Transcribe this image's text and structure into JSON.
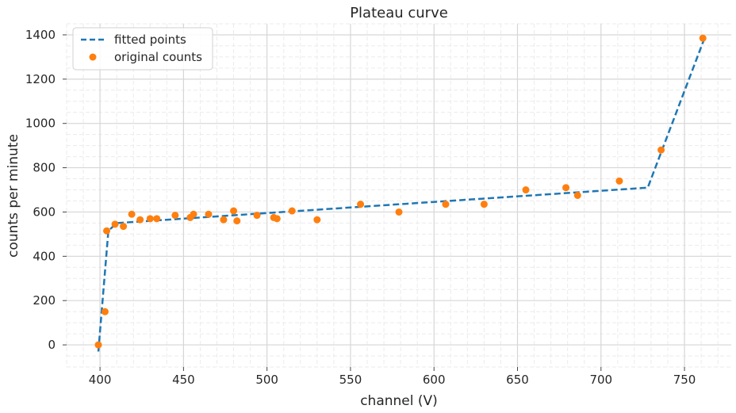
{
  "chart_data": {
    "type": "line",
    "title": "Plateau curve",
    "xlabel": "channel (V)",
    "ylabel": "counts per minute",
    "xlim": [
      380,
      778
    ],
    "ylim": [
      -100,
      1450
    ],
    "xticks": [
      400,
      450,
      500,
      550,
      600,
      650,
      700,
      750
    ],
    "yticks": [
      0,
      200,
      400,
      600,
      800,
      1000,
      1200,
      1400
    ],
    "grid": true,
    "minor_grid": true,
    "legend_position": "top-left",
    "series": [
      {
        "name": "fitted points",
        "style": "dashed-line",
        "color": "#1f77b4",
        "x": [
          399,
          405,
          410,
          728,
          762
        ],
        "y": [
          -30,
          515,
          550,
          710,
          1385
        ]
      },
      {
        "name": "original counts",
        "style": "markers",
        "color": "#ff7f0e",
        "x": [
          399,
          403,
          404,
          409,
          414,
          419,
          424,
          430,
          434,
          445,
          454,
          456,
          465,
          474,
          480,
          482,
          494,
          504,
          506,
          515,
          530,
          556,
          579,
          607,
          630,
          655,
          679,
          686,
          711,
          736,
          761
        ],
        "y": [
          0,
          150,
          515,
          545,
          535,
          590,
          565,
          570,
          570,
          585,
          575,
          590,
          590,
          565,
          605,
          560,
          585,
          575,
          570,
          605,
          565,
          635,
          600,
          635,
          635,
          700,
          710,
          675,
          740,
          880,
          1385
        ]
      }
    ]
  }
}
